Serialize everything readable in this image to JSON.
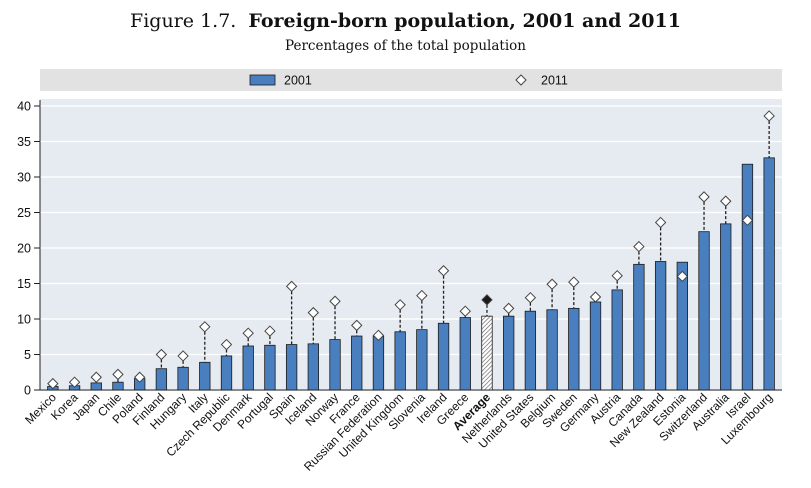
{
  "figure_label": "Figure 1.7.",
  "chart_data": {
    "type": "bar",
    "title": "Foreign-born population, 2001 and 2011",
    "subtitle": "Percentages of the total population",
    "ylim": [
      0,
      40
    ],
    "yticks": [
      0,
      5,
      10,
      15,
      20,
      25,
      30,
      35,
      40
    ],
    "grid": "horizontal",
    "legend_placement": "top",
    "highlight_category": "Average",
    "categories": [
      "Mexico",
      "Korea",
      "Japan",
      "Chile",
      "Poland",
      "Finland",
      "Hungary",
      "Italy",
      "Czech Republic",
      "Denmark",
      "Portugal",
      "Spain",
      "Iceland",
      "Norway",
      "France",
      "Russian Federation",
      "United Kingdom",
      "Slovenia",
      "Ireland",
      "Greece",
      "Average",
      "Netherlands",
      "United States",
      "Belgium",
      "Sweden",
      "Germany",
      "Austria",
      "Canada",
      "New Zealand",
      "Estonia",
      "Switzerland",
      "Australia",
      "Israel",
      "Luxembourg"
    ],
    "series": [
      {
        "name": "2001",
        "mark": "bar",
        "color": "#4a7fbf",
        "values": [
          0.5,
          0.6,
          1.0,
          1.1,
          1.6,
          3.0,
          3.2,
          3.9,
          4.8,
          6.2,
          6.3,
          6.4,
          6.5,
          7.1,
          7.6,
          7.6,
          8.2,
          8.5,
          9.4,
          10.2,
          10.4,
          10.4,
          11.1,
          11.3,
          11.5,
          12.4,
          14.1,
          17.7,
          18.1,
          18.0,
          22.3,
          23.4,
          31.8,
          32.7
        ]
      },
      {
        "name": "2011",
        "mark": "diamond",
        "color": "#ffffff",
        "values": [
          0.9,
          1.1,
          1.8,
          2.2,
          1.8,
          5.0,
          4.8,
          8.9,
          6.4,
          8.0,
          8.3,
          14.6,
          10.9,
          12.5,
          9.1,
          7.7,
          12.0,
          13.3,
          16.8,
          11.1,
          12.7,
          11.5,
          13.0,
          14.9,
          15.2,
          13.1,
          16.1,
          20.2,
          23.6,
          16.0,
          27.2,
          26.6,
          23.9,
          38.6
        ]
      }
    ]
  }
}
